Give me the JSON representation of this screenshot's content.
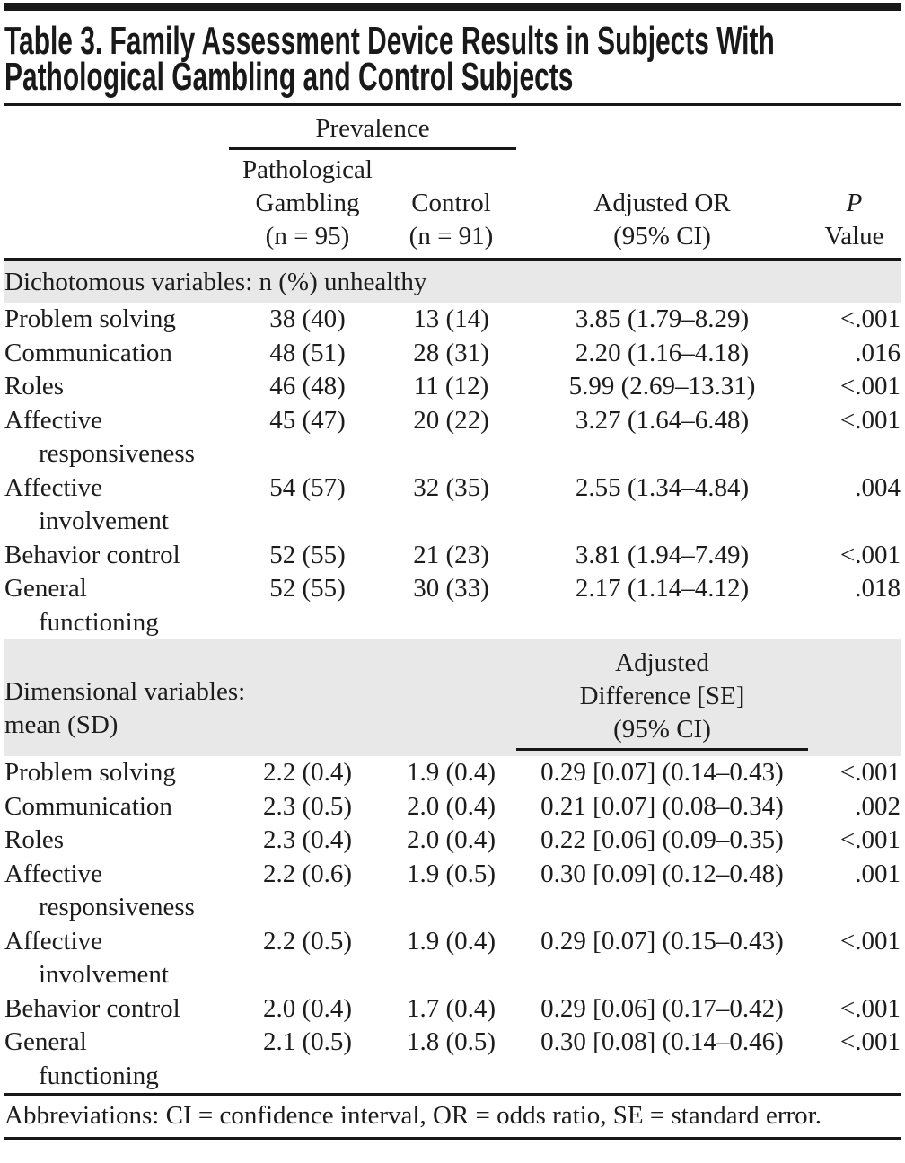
{
  "title": {
    "line1": "Table 3. Family Assessment Device Results in Subjects With",
    "line2": "Pathological Gambling and Control Subjects"
  },
  "header": {
    "prevalence": "Prevalence",
    "pg_line1": "Pathological",
    "pg_line2": "Gambling",
    "pg_line3": "(n = 95)",
    "control_line1": "Control",
    "control_line2": "(n = 91)",
    "or_line1": "Adjusted OR",
    "or_line2": "(95% CI)",
    "p_line1": "P",
    "p_line2": "Value"
  },
  "section1": {
    "band_label": "Dichotomous variables: n (%) unhealthy",
    "rows": [
      {
        "label": "Problem solving",
        "label2": "",
        "pg": "38 (40)",
        "control": "13 (14)",
        "effect": "3.85 (1.79–8.29)",
        "p": "<.001"
      },
      {
        "label": "Communication",
        "label2": "",
        "pg": "48 (51)",
        "control": "28 (31)",
        "effect": "2.20 (1.16–4.18)",
        "p": ".016"
      },
      {
        "label": "Roles",
        "label2": "",
        "pg": "46 (48)",
        "control": "11 (12)",
        "effect": "5.99 (2.69–13.31)",
        "p": "<.001"
      },
      {
        "label": "Affective",
        "label2": "responsiveness",
        "pg": "45 (47)",
        "control": "20 (22)",
        "effect": "3.27 (1.64–6.48)",
        "p": "<.001"
      },
      {
        "label": "Affective",
        "label2": "involvement",
        "pg": "54 (57)",
        "control": "32 (35)",
        "effect": "2.55 (1.34–4.84)",
        "p": ".004"
      },
      {
        "label": "Behavior control",
        "label2": "",
        "pg": "52 (55)",
        "control": "21 (23)",
        "effect": "3.81 (1.94–7.49)",
        "p": "<.001"
      },
      {
        "label": "General",
        "label2": "functioning",
        "pg": "52 (55)",
        "control": "30 (33)",
        "effect": "2.17 (1.14–4.12)",
        "p": ".018"
      }
    ]
  },
  "section2": {
    "band_label_line1": "Dimensional variables:",
    "band_label_line2": "mean (SD)",
    "effect_line1": "Adjusted",
    "effect_line2": "Difference [SE]",
    "effect_line3": "(95% CI)",
    "rows": [
      {
        "label": "Problem solving",
        "label2": "",
        "pg": "2.2 (0.4)",
        "control": "1.9 (0.4)",
        "effect": "0.29 [0.07] (0.14–0.43)",
        "p": "<.001"
      },
      {
        "label": "Communication",
        "label2": "",
        "pg": "2.3 (0.5)",
        "control": "2.0 (0.4)",
        "effect": "0.21 [0.07] (0.08–0.34)",
        "p": ".002"
      },
      {
        "label": "Roles",
        "label2": "",
        "pg": "2.3 (0.4)",
        "control": "2.0 (0.4)",
        "effect": "0.22 [0.06] (0.09–0.35)",
        "p": "<.001"
      },
      {
        "label": "Affective",
        "label2": "responsiveness",
        "pg": "2.2 (0.6)",
        "control": "1.9 (0.5)",
        "effect": "0.30 [0.09] (0.12–0.48)",
        "p": ".001"
      },
      {
        "label": "Affective",
        "label2": "involvement",
        "pg": "2.2 (0.5)",
        "control": "1.9 (0.4)",
        "effect": "0.29 [0.07] (0.15–0.43)",
        "p": "<.001"
      },
      {
        "label": "Behavior control",
        "label2": "",
        "pg": "2.0 (0.4)",
        "control": "1.7 (0.4)",
        "effect": "0.29 [0.06] (0.17–0.42)",
        "p": "<.001"
      },
      {
        "label": "General",
        "label2": "functioning",
        "pg": "2.1 (0.5)",
        "control": "1.8 (0.5)",
        "effect": "0.30 [0.08] (0.14–0.46)",
        "p": "<.001"
      }
    ]
  },
  "footnote": "Abbreviations: CI = confidence interval, OR = odds ratio, SE = standard error.",
  "colors": {
    "band_gray": "#e8e8e8",
    "rule_black": "#171717"
  }
}
